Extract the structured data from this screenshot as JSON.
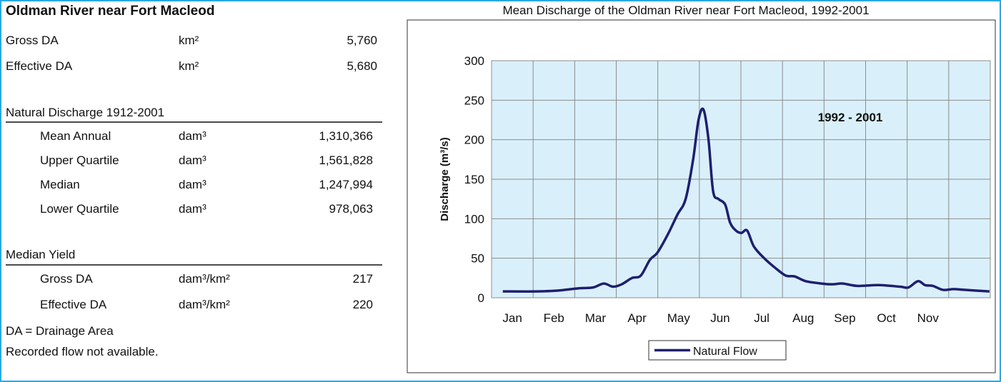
{
  "station": {
    "title": "Oldman River near Fort Macleod",
    "areas": [
      {
        "label": "Gross DA",
        "unit": "km²",
        "value": "5,760"
      },
      {
        "label": "Effective DA",
        "unit": "km²",
        "value": "5,680"
      }
    ],
    "discharge": {
      "heading": "Natural Discharge 1912-2001",
      "rows": [
        {
          "label": "Mean Annual",
          "unit": "dam³",
          "value": "1,310,366"
        },
        {
          "label": "Upper Quartile",
          "unit": "dam³",
          "value": "1,561,828"
        },
        {
          "label": "Median",
          "unit": "dam³",
          "value": "1,247,994"
        },
        {
          "label": "Lower Quartile",
          "unit": "dam³",
          "value": "978,063"
        }
      ]
    },
    "yield": {
      "heading": "Median Yield",
      "rows": [
        {
          "label": "Gross DA",
          "unit": "dam³/km²",
          "value": "217"
        },
        {
          "label": "Effective DA",
          "unit": "dam³/km²",
          "value": "220"
        }
      ]
    },
    "notes": [
      "DA = Drainage Area",
      "Recorded flow not available."
    ]
  },
  "chart_data": {
    "type": "line",
    "title": "Mean Discharge of the Oldman River near Fort Macleod, 1992-2001",
    "y_label": "Discharge (m³/s)",
    "annotation": "1992 - 2001",
    "categories": [
      "Jan",
      "Feb",
      "Mar",
      "Apr",
      "May",
      "Jun",
      "Jul",
      "Aug",
      "Sep",
      "Oct",
      "Nov",
      null
    ],
    "x": [
      0.27,
      1.07,
      1.58,
      2.1,
      2.44,
      2.7,
      2.92,
      3.13,
      3.38,
      3.59,
      3.81,
      3.99,
      4.24,
      4.47,
      4.67,
      4.85,
      4.98,
      5.1,
      5.22,
      5.33,
      5.46,
      5.62,
      5.74,
      5.88,
      6.01,
      6.15,
      6.31,
      6.56,
      6.82,
      7.08,
      7.29,
      7.56,
      7.94,
      8.2,
      8.45,
      8.8,
      9.31,
      9.83,
      10.03,
      10.26,
      10.43,
      10.62,
      10.86,
      11.12,
      11.37,
      11.98
    ],
    "xlim": [
      0,
      12
    ],
    "series": [
      {
        "name": "Natural Flow",
        "color": "#1f1f6e",
        "values": [
          8,
          8,
          9,
          12,
          13,
          18,
          14,
          17,
          25,
          28,
          48,
          57,
          80,
          105,
          125,
          175,
          225,
          238,
          200,
          135,
          125,
          118,
          95,
          85,
          82,
          85,
          65,
          50,
          38,
          28,
          27,
          21,
          18,
          17,
          18,
          15,
          16,
          14,
          13,
          21,
          16,
          15,
          10,
          11,
          10,
          8
        ]
      }
    ],
    "ylim": [
      0,
      300
    ],
    "yticks": [
      0,
      50,
      100,
      150,
      200,
      250,
      300
    ],
    "grid": true,
    "legend": "bottom"
  }
}
